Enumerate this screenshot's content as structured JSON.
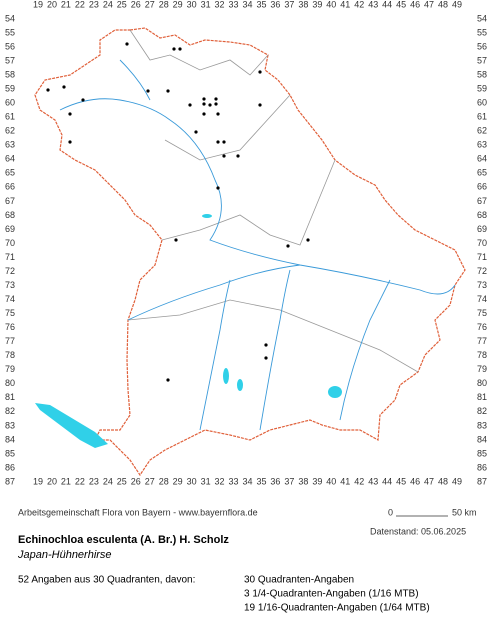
{
  "grid": {
    "columns": [
      19,
      20,
      21,
      22,
      23,
      24,
      25,
      26,
      27,
      28,
      29,
      30,
      31,
      32,
      33,
      34,
      35,
      36,
      37,
      38,
      39,
      40,
      41,
      42,
      43,
      44,
      45,
      46,
      47,
      48,
      49
    ],
    "rows": [
      54,
      55,
      56,
      57,
      58,
      59,
      60,
      61,
      62,
      63,
      64,
      65,
      66,
      67,
      68,
      69,
      70,
      71,
      72,
      73,
      74,
      75,
      76,
      77,
      78,
      79,
      80,
      81,
      82,
      83,
      84,
      85,
      86,
      87
    ]
  },
  "credit": "Arbeitsgemeinschaft Flora von Bayern - www.bayernflora.de",
  "scale": {
    "start": "0",
    "end": "50 km"
  },
  "date": "Datenstand: 05.06.2025",
  "title": "Echinochloa esculenta (A. Br.) H. Scholz",
  "subtitle": "Japan-Hühnerhirse",
  "summary": "52 Angaben aus 30 Quadranten, davon:",
  "details": [
    "30 Quadranten-Angaben",
    "3 1/4-Quadranten-Angaben (1/16 MTB)",
    "19 1/16-Quadranten-Angaben (1/64 MTB)"
  ]
}
